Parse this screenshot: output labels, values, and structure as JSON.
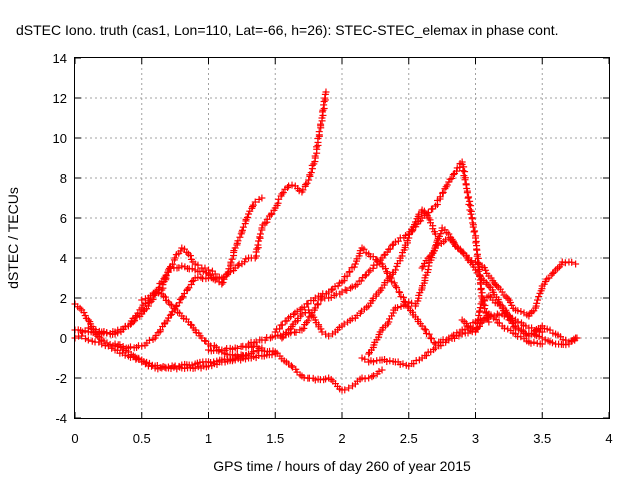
{
  "chart_data": {
    "type": "scatter",
    "title": "dSTEC Iono. truth (cas1, Lon=110, Lat=-66, h=26): STEC-STEC_elemax in phase cont.",
    "xlabel": "GPS time / hours of day 260 of year 2015",
    "ylabel": "dSTEC  / TECUs",
    "xlim": [
      0,
      4
    ],
    "ylim": [
      -4,
      14
    ],
    "xticks": [
      "0",
      "0.5",
      "1",
      "1.5",
      "2",
      "2.5",
      "3",
      "3.5",
      "4"
    ],
    "yticks": [
      "-4",
      "-2",
      "0",
      "2",
      "4",
      "6",
      "8",
      "10",
      "12",
      "14"
    ],
    "grid": true,
    "marker": "plus",
    "color": "#ff0000",
    "series": [
      {
        "x": [
          0.0,
          0.05,
          0.1,
          0.15,
          0.2,
          0.25,
          0.3,
          0.4,
          0.5,
          0.6,
          0.7,
          0.8,
          0.9,
          1.0,
          1.1,
          1.2,
          1.3,
          1.4,
          1.5
        ],
        "y": [
          0.0,
          0.1,
          -0.1,
          -0.2,
          -0.3,
          -0.4,
          -0.6,
          -0.9,
          -1.1,
          -1.4,
          -1.5,
          -1.5,
          -1.5,
          -1.4,
          -1.2,
          -1.1,
          -1.0,
          -0.9,
          -0.8
        ]
      },
      {
        "x": [
          0.0,
          0.05,
          0.1,
          0.15,
          0.2,
          0.3,
          0.4,
          0.5,
          0.55,
          0.6,
          0.65,
          0.7,
          0.75,
          0.8,
          0.9,
          1.0,
          1.1,
          1.2,
          1.3
        ],
        "y": [
          1.7,
          1.4,
          0.9,
          0.3,
          -0.1,
          -0.4,
          -0.7,
          -1.2,
          -1.4,
          -1.5,
          -1.5,
          -1.45,
          -1.4,
          -1.35,
          -1.3,
          -1.2,
          -1.1,
          -1.0,
          -0.9
        ]
      },
      {
        "x": [
          0.0,
          0.1,
          0.2,
          0.3,
          0.4,
          0.5,
          0.55,
          0.6,
          0.65,
          0.7,
          0.75,
          0.8,
          0.85,
          0.9,
          0.95,
          1.0,
          1.05
        ],
        "y": [
          0.4,
          0.3,
          0.2,
          0.3,
          0.6,
          1.2,
          1.6,
          2.2,
          2.8,
          3.3,
          4.0,
          4.5,
          4.2,
          3.7,
          3.5,
          3.4,
          3.2
        ]
      },
      {
        "x": [
          0.1,
          0.2,
          0.3,
          0.4,
          0.5,
          0.6,
          0.65,
          0.7,
          0.8,
          0.9,
          1.0,
          1.05,
          1.1,
          1.15,
          1.2,
          1.25,
          1.3,
          1.35,
          1.4
        ],
        "y": [
          0.5,
          0.3,
          0.2,
          0.6,
          1.5,
          2.2,
          2.4,
          3.4,
          3.6,
          3.4,
          3.2,
          2.9,
          2.7,
          3.3,
          4.5,
          5.3,
          6.2,
          6.8,
          7.0
        ]
      },
      {
        "x": [
          0.3,
          0.4,
          0.5,
          0.6,
          0.7,
          0.8,
          0.9,
          1.0,
          1.1,
          1.2,
          1.3,
          1.35,
          1.4,
          1.5,
          1.55,
          1.6,
          1.65,
          1.7,
          1.75,
          1.8,
          1.85,
          1.88
        ],
        "y": [
          -0.3,
          -0.5,
          -0.4,
          0.0,
          1.0,
          2.0,
          3.0,
          3.0,
          3.0,
          3.5,
          4.0,
          4.0,
          5.5,
          6.5,
          7.2,
          7.6,
          7.6,
          7.3,
          7.9,
          9.0,
          11.0,
          12.3
        ]
      },
      {
        "x": [
          0.5,
          0.55,
          0.6,
          0.65,
          0.7,
          0.75,
          0.8,
          0.85,
          0.9,
          0.95,
          1.0,
          1.1,
          1.2,
          1.3,
          1.4
        ],
        "y": [
          1.9,
          2.0,
          2.3,
          2.2,
          1.8,
          1.4,
          1.1,
          0.8,
          0.4,
          0.0,
          -0.3,
          -0.6,
          -0.5,
          -0.4,
          -0.5
        ]
      },
      {
        "x": [
          1.0,
          1.1,
          1.2,
          1.3,
          1.4,
          1.5,
          1.6,
          1.7,
          1.8,
          1.9,
          2.0,
          2.05,
          2.1,
          2.15,
          2.2,
          2.3
        ],
        "y": [
          -0.6,
          -0.7,
          -0.9,
          -0.8,
          -0.6,
          -0.7,
          -1.3,
          -1.9,
          -2.1,
          -2.0,
          -2.6,
          -2.5,
          -2.3,
          -2.0,
          -2.0,
          -1.6
        ]
      },
      {
        "x": [
          1.3,
          1.4,
          1.5,
          1.6,
          1.7,
          1.8,
          1.85,
          1.9,
          2.0,
          2.1,
          2.2,
          2.3,
          2.4,
          2.5,
          2.6,
          2.7,
          2.8,
          2.9,
          3.0,
          3.05,
          3.1
        ],
        "y": [
          -0.3,
          -0.1,
          0.1,
          0.2,
          0.4,
          1.5,
          2.0,
          2.0,
          2.3,
          2.6,
          3.3,
          4.0,
          4.8,
          5.2,
          6.0,
          6.6,
          7.8,
          8.8,
          5.0,
          2.0,
          0.8
        ]
      },
      {
        "x": [
          1.55,
          1.6,
          1.65,
          1.7,
          1.75,
          1.8,
          1.85,
          1.9,
          1.95,
          2.0,
          2.1,
          2.2,
          2.3,
          2.4,
          2.45,
          2.5,
          2.55,
          2.6,
          2.65,
          2.7
        ],
        "y": [
          0.0,
          0.4,
          0.8,
          1.2,
          1.4,
          0.9,
          0.3,
          0.1,
          0.3,
          0.6,
          1.0,
          1.6,
          2.5,
          3.4,
          4.1,
          5.0,
          5.8,
          6.4,
          6.0,
          5.2
        ]
      },
      {
        "x": [
          1.5,
          1.6,
          1.7,
          1.8,
          1.9,
          2.0,
          2.1,
          2.15,
          2.2,
          2.3,
          2.4,
          2.5,
          2.6,
          2.7,
          2.8,
          2.9,
          3.0,
          3.1,
          3.2,
          3.3,
          3.4,
          3.5
        ],
        "y": [
          0.3,
          1.0,
          1.5,
          2.0,
          2.3,
          2.8,
          3.7,
          4.5,
          4.2,
          3.7,
          2.6,
          1.5,
          0.6,
          -0.3,
          0.0,
          0.4,
          0.8,
          1.1,
          1.2,
          0.9,
          0.5,
          0.3
        ]
      },
      {
        "x": [
          2.2,
          2.3,
          2.35,
          2.4,
          2.5,
          2.55,
          2.6,
          2.65,
          2.7,
          2.8,
          2.9,
          3.0,
          3.1,
          3.2,
          3.3,
          3.4,
          3.5,
          3.6,
          3.7,
          3.75
        ],
        "y": [
          -0.8,
          0.4,
          0.8,
          1.5,
          1.8,
          1.6,
          2.5,
          3.6,
          4.6,
          5.0,
          4.3,
          3.4,
          2.6,
          1.6,
          0.6,
          0.2,
          0.0,
          -0.3,
          -0.3,
          0.0
        ]
      },
      {
        "x": [
          2.15,
          2.2,
          2.3,
          2.4,
          2.5,
          2.6,
          2.7,
          2.8,
          2.9,
          3.0,
          3.05,
          3.1,
          3.2,
          3.3,
          3.4,
          3.5
        ],
        "y": [
          -1.0,
          -1.2,
          -1.1,
          -1.2,
          -1.4,
          -1.0,
          -0.5,
          -0.1,
          0.2,
          0.4,
          0.8,
          1.2,
          0.6,
          0.2,
          -0.2,
          -0.3
        ]
      },
      {
        "x": [
          2.6,
          2.7,
          2.75,
          2.8,
          2.85,
          2.9,
          2.95,
          3.0,
          3.05,
          3.1,
          3.2,
          3.3,
          3.4,
          3.45,
          3.5,
          3.55,
          3.6,
          3.65,
          3.7,
          3.75
        ],
        "y": [
          3.5,
          4.5,
          5.5,
          5.2,
          4.6,
          4.3,
          4.0,
          3.8,
          3.6,
          3.1,
          2.3,
          1.4,
          1.1,
          1.5,
          2.6,
          3.0,
          3.4,
          3.8,
          3.8,
          3.7
        ]
      },
      {
        "x": [
          2.9,
          3.0,
          3.05,
          3.1,
          3.2,
          3.3,
          3.4,
          3.5,
          3.6,
          3.7,
          3.76
        ],
        "y": [
          0.9,
          0.3,
          1.8,
          2.1,
          1.5,
          0.5,
          0.1,
          0.6,
          0.2,
          -0.2,
          0.0
        ]
      }
    ]
  }
}
